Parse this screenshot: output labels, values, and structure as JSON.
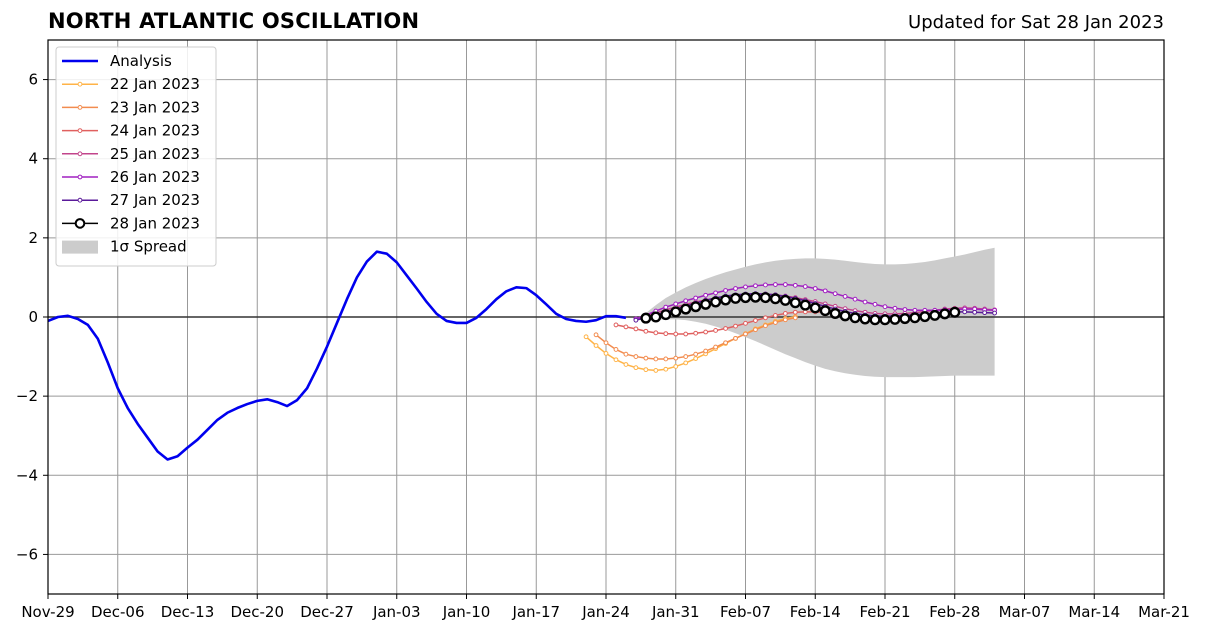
{
  "title": "NORTH ATLANTIC OSCILLATION",
  "updated": "Updated for Sat 28 Jan 2023",
  "chart_data": {
    "type": "line",
    "title": "NORTH ATLANTIC OSCILLATION",
    "xlabel": "",
    "ylabel": "",
    "xlim": [
      "2022-11-29",
      "2023-03-21"
    ],
    "ylim": [
      -7,
      7
    ],
    "grid": true,
    "legend_position": "top-left",
    "x_ticks": [
      "Nov-29",
      "Dec-06",
      "Dec-13",
      "Dec-20",
      "Dec-27",
      "Jan-03",
      "Jan-10",
      "Jan-17",
      "Jan-24",
      "Jan-31",
      "Feb-07",
      "Feb-14",
      "Feb-21",
      "Feb-28",
      "Mar-07",
      "Mar-14",
      "Mar-21"
    ],
    "y_ticks": [
      6,
      4,
      2,
      0,
      -2,
      -4,
      -6
    ],
    "y_tick_labels": [
      "6",
      "4",
      "2",
      "0",
      "−2",
      "−4",
      "−6"
    ],
    "series": [
      {
        "name": "Analysis",
        "color": "#0000ee",
        "style": "analysis",
        "start": "2022-11-29",
        "values": [
          -0.1,
          0.0,
          0.03,
          -0.05,
          -0.2,
          -0.55,
          -1.15,
          -1.8,
          -2.3,
          -2.7,
          -3.05,
          -3.4,
          -3.6,
          -3.52,
          -3.3,
          -3.1,
          -2.85,
          -2.6,
          -2.42,
          -2.3,
          -2.2,
          -2.12,
          -2.08,
          -2.15,
          -2.25,
          -2.1,
          -1.8,
          -1.3,
          -0.75,
          -0.15,
          0.45,
          1.0,
          1.4,
          1.65,
          1.6,
          1.38,
          1.05,
          0.72,
          0.38,
          0.08,
          -0.1,
          -0.15,
          -0.15,
          -0.02,
          0.2,
          0.45,
          0.65,
          0.75,
          0.73,
          0.55,
          0.32,
          0.08,
          -0.05,
          -0.1,
          -0.12,
          -0.08,
          0.02,
          0.02,
          -0.02
        ]
      },
      {
        "name": "22 Jan 2023",
        "color": "#ffb347",
        "style": "forecast",
        "start": "2023-01-22",
        "values": [
          -0.5,
          -0.72,
          -0.92,
          -1.08,
          -1.2,
          -1.28,
          -1.33,
          -1.35,
          -1.32,
          -1.25,
          -1.16,
          -1.05,
          -0.93,
          -0.8,
          -0.67,
          -0.54,
          -0.42,
          -0.3,
          -0.2,
          -0.11,
          -0.04,
          0.01
        ]
      },
      {
        "name": "23 Jan 2023",
        "color": "#f28c4f",
        "style": "forecast",
        "start": "2023-01-23",
        "values": [
          -0.45,
          -0.65,
          -0.82,
          -0.94,
          -1.0,
          -1.04,
          -1.06,
          -1.06,
          -1.04,
          -1.0,
          -0.94,
          -0.86,
          -0.76,
          -0.65,
          -0.54,
          -0.43,
          -0.32,
          -0.22,
          -0.14,
          -0.07,
          -0.02
        ]
      },
      {
        "name": "24 Jan 2023",
        "color": "#e0605f",
        "style": "forecast",
        "start": "2023-01-25",
        "values": [
          -0.2,
          -0.25,
          -0.3,
          -0.36,
          -0.4,
          -0.42,
          -0.43,
          -0.43,
          -0.41,
          -0.38,
          -0.34,
          -0.29,
          -0.23,
          -0.16,
          -0.09,
          -0.02,
          0.04,
          0.09,
          0.12,
          0.13,
          0.13,
          0.12,
          0.09,
          0.05,
          0.01
        ]
      },
      {
        "name": "25 Jan 2023",
        "color": "#c2448b",
        "style": "forecast",
        "start": "2023-01-27",
        "values": [
          -0.05,
          0.03,
          0.1,
          0.18,
          0.25,
          0.32,
          0.38,
          0.43,
          0.48,
          0.52,
          0.55,
          0.57,
          0.58,
          0.58,
          0.56,
          0.53,
          0.49,
          0.44,
          0.39,
          0.33,
          0.27,
          0.21,
          0.16,
          0.12,
          0.09,
          0.08,
          0.08,
          0.09,
          0.11,
          0.14,
          0.17,
          0.2,
          0.22,
          0.23,
          0.22,
          0.2,
          0.18
        ]
      },
      {
        "name": "26 Jan 2023",
        "color": "#a020c0",
        "style": "forecast",
        "start": "2023-01-27",
        "values": [
          -0.05,
          0.05,
          0.15,
          0.25,
          0.33,
          0.41,
          0.48,
          0.55,
          0.61,
          0.67,
          0.72,
          0.76,
          0.79,
          0.81,
          0.82,
          0.82,
          0.8,
          0.77,
          0.72,
          0.66,
          0.59,
          0.52,
          0.45,
          0.38,
          0.32,
          0.26,
          0.22,
          0.19,
          0.17,
          0.17,
          0.17,
          0.18,
          0.19,
          0.2,
          0.2,
          0.18,
          0.17
        ]
      },
      {
        "name": "27 Jan 2023",
        "color": "#5a1a9a",
        "style": "forecast",
        "start": "2023-01-27",
        "values": [
          -0.08,
          -0.02,
          0.05,
          0.12,
          0.2,
          0.28,
          0.35,
          0.42,
          0.48,
          0.53,
          0.56,
          0.58,
          0.59,
          0.58,
          0.56,
          0.52,
          0.47,
          0.41,
          0.34,
          0.27,
          0.2,
          0.14,
          0.09,
          0.05,
          0.03,
          0.02,
          0.03,
          0.04,
          0.06,
          0.08,
          0.1,
          0.12,
          0.13,
          0.13,
          0.12,
          0.11,
          0.1
        ]
      },
      {
        "name": "28 Jan 2023",
        "color": "#000000",
        "style": "current",
        "start": "2023-01-28",
        "values": [
          -0.03,
          0.0,
          0.06,
          0.13,
          0.2,
          0.26,
          0.32,
          0.38,
          0.43,
          0.47,
          0.49,
          0.5,
          0.49,
          0.46,
          0.42,
          0.36,
          0.3,
          0.23,
          0.16,
          0.09,
          0.03,
          -0.02,
          -0.05,
          -0.07,
          -0.07,
          -0.06,
          -0.04,
          -0.02,
          0.01,
          0.04,
          0.08,
          0.12
        ]
      }
    ],
    "spread": {
      "name": "1σ Spread",
      "color": "#cccccc",
      "start": "2023-01-28",
      "upper": [
        0.1,
        0.3,
        0.48,
        0.62,
        0.75,
        0.86,
        0.96,
        1.05,
        1.13,
        1.2,
        1.27,
        1.33,
        1.38,
        1.42,
        1.45,
        1.47,
        1.48,
        1.48,
        1.47,
        1.45,
        1.42,
        1.39,
        1.36,
        1.34,
        1.33,
        1.33,
        1.34,
        1.36,
        1.39,
        1.43,
        1.48,
        1.53,
        1.58,
        1.64,
        1.7,
        1.75
      ],
      "lower": [
        -0.1,
        -0.08,
        -0.06,
        -0.06,
        -0.08,
        -0.12,
        -0.17,
        -0.24,
        -0.32,
        -0.41,
        -0.51,
        -0.61,
        -0.72,
        -0.83,
        -0.94,
        -1.04,
        -1.14,
        -1.23,
        -1.31,
        -1.37,
        -1.42,
        -1.46,
        -1.49,
        -1.51,
        -1.52,
        -1.52,
        -1.52,
        -1.52,
        -1.51,
        -1.5,
        -1.49,
        -1.48,
        -1.48,
        -1.48,
        -1.48,
        -1.48
      ]
    }
  }
}
